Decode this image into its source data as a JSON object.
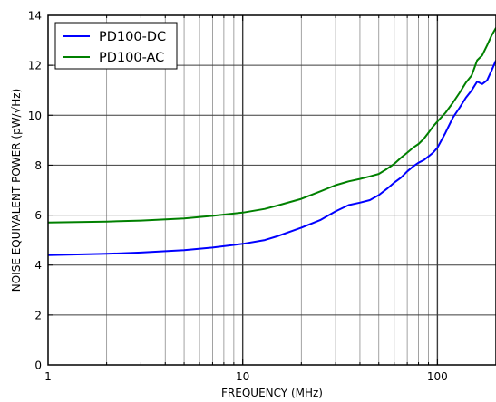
{
  "chart_data": {
    "type": "line",
    "title": "",
    "xlabel": "FREQUENCY (MHz)",
    "ylabel": "NOISE EQUIVALENT POWER (pW/√Hz)",
    "xscale": "log",
    "xlim": [
      1,
      200
    ],
    "ylim": [
      0,
      14
    ],
    "xticks": [
      {
        "value": 1,
        "label": "1"
      },
      {
        "value": 10,
        "label": "10"
      },
      {
        "value": 100,
        "label": "100"
      }
    ],
    "yticks": [
      {
        "value": 0,
        "label": "0"
      },
      {
        "value": 2,
        "label": "2"
      },
      {
        "value": 4,
        "label": "4"
      },
      {
        "value": 6,
        "label": "6"
      },
      {
        "value": 8,
        "label": "8"
      },
      {
        "value": 10,
        "label": "10"
      },
      {
        "value": 12,
        "label": "12"
      },
      {
        "value": 14,
        "label": "14"
      }
    ],
    "grid": true,
    "legend_position": "top-left",
    "series": [
      {
        "name": "PD100-DC",
        "color": "#0000ff",
        "x": [
          1,
          2,
          3,
          5,
          7,
          10,
          13,
          15,
          20,
          25,
          30,
          35,
          40,
          45,
          50,
          55,
          60,
          65,
          70,
          75,
          80,
          85,
          90,
          95,
          100,
          110,
          120,
          130,
          140,
          150,
          160,
          170,
          180,
          190,
          200
        ],
        "y": [
          4.4,
          4.45,
          4.5,
          4.6,
          4.7,
          4.85,
          5.0,
          5.15,
          5.5,
          5.8,
          6.15,
          6.4,
          6.5,
          6.6,
          6.8,
          7.05,
          7.3,
          7.5,
          7.75,
          7.95,
          8.1,
          8.2,
          8.35,
          8.5,
          8.7,
          9.3,
          9.9,
          10.3,
          10.7,
          11.0,
          11.35,
          11.25,
          11.4,
          11.8,
          12.2
        ]
      },
      {
        "name": "PD100-AC",
        "color": "#008000",
        "x": [
          1,
          2,
          3,
          5,
          7,
          10,
          13,
          15,
          20,
          25,
          30,
          35,
          40,
          45,
          50,
          55,
          60,
          65,
          70,
          75,
          80,
          85,
          90,
          95,
          100,
          110,
          120,
          130,
          140,
          150,
          160,
          170,
          180,
          190,
          200
        ],
        "y": [
          5.7,
          5.74,
          5.78,
          5.87,
          5.97,
          6.1,
          6.25,
          6.38,
          6.65,
          6.95,
          7.2,
          7.35,
          7.45,
          7.55,
          7.65,
          7.85,
          8.05,
          8.3,
          8.5,
          8.7,
          8.85,
          9.05,
          9.3,
          9.55,
          9.75,
          10.1,
          10.5,
          10.9,
          11.3,
          11.6,
          12.2,
          12.4,
          12.8,
          13.2,
          13.5
        ]
      }
    ]
  }
}
